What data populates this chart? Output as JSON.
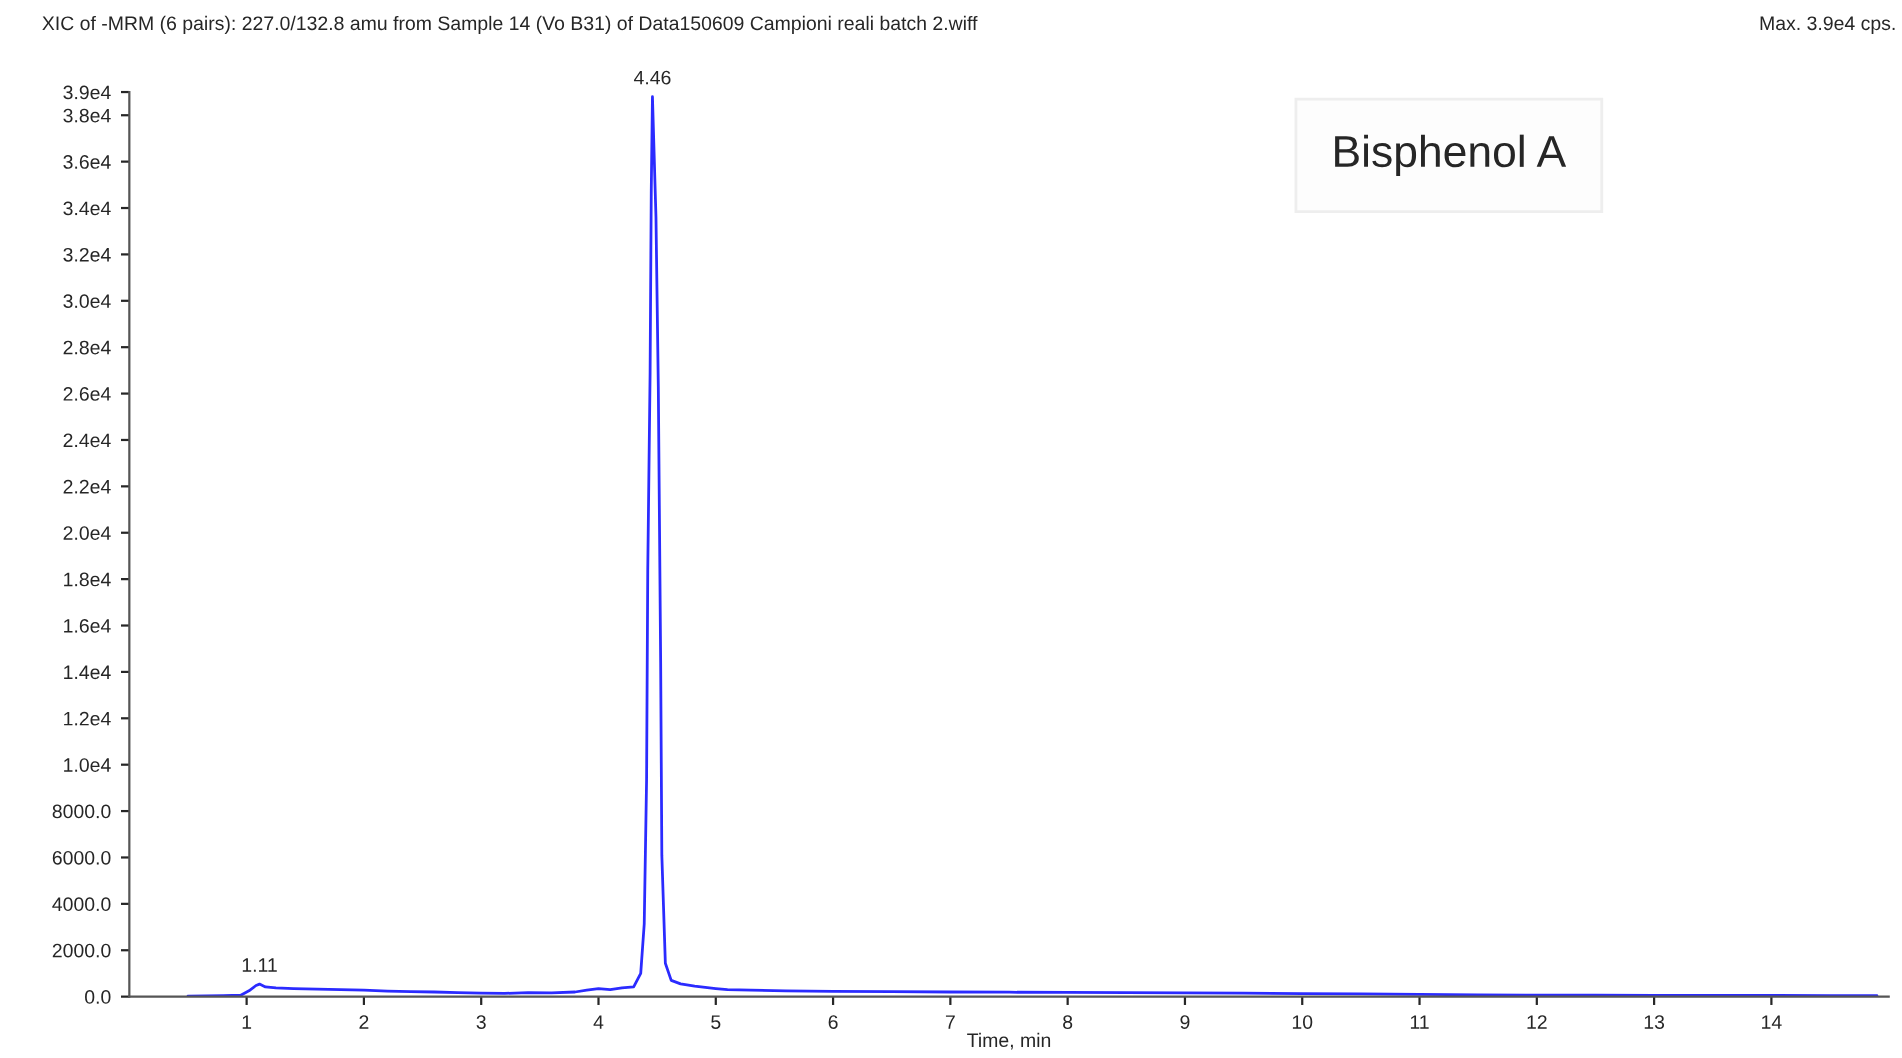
{
  "chart_data": {
    "type": "line",
    "title": "XIC of -MRM (6 pairs): 227.0/132.8 amu from Sample 14 (Vo B31) of Data150609 Campioni reali batch 2.wiff",
    "xlabel": "Time, min",
    "annotations": [
      "Max. 3.9e4 cps.",
      "Bisphenol A",
      {
        "text": "4.46",
        "x": 4.46,
        "y": 38800
      },
      {
        "text": "1.11",
        "x": 1.11,
        "y": 540
      }
    ],
    "series": [
      {
        "color": "#2b2bff",
        "x": [
          0.5,
          0.8,
          0.95,
          1.02,
          1.08,
          1.11,
          1.16,
          1.25,
          1.4,
          1.6,
          1.8,
          2.0,
          2.2,
          2.4,
          2.6,
          2.8,
          3.0,
          3.2,
          3.4,
          3.6,
          3.8,
          3.9,
          4.0,
          4.1,
          4.2,
          4.3,
          4.36,
          4.39,
          4.41,
          4.42,
          4.44,
          4.45,
          4.46,
          4.49,
          4.51,
          4.53,
          4.54,
          4.57,
          4.62,
          4.7,
          4.82,
          5.0,
          5.1,
          5.3,
          5.6,
          6.0,
          6.5,
          7.0,
          7.5,
          8.0,
          8.5,
          9.0,
          9.5,
          10.0,
          10.5,
          11.0,
          11.5,
          12.0,
          12.5,
          13.0,
          13.5,
          14.0,
          14.5,
          14.9
        ],
        "values": [
          20,
          40,
          60,
          250,
          480,
          540,
          420,
          380,
          350,
          320,
          300,
          280,
          240,
          220,
          200,
          170,
          150,
          140,
          170,
          160,
          200,
          280,
          350,
          300,
          380,
          420,
          1000,
          3140,
          9350,
          18400,
          26900,
          34800,
          38800,
          33600,
          26300,
          14400,
          6100,
          1440,
          700,
          550,
          450,
          350,
          300,
          280,
          250,
          230,
          220,
          200,
          190,
          180,
          170,
          160,
          150,
          130,
          120,
          100,
          80,
          60,
          60,
          50,
          50,
          50,
          40,
          40
        ]
      }
    ],
    "xlim": [
      0,
      15
    ],
    "xticks": [
      1,
      2,
      3,
      4,
      5,
      6,
      7,
      8,
      9,
      10,
      11,
      12,
      13,
      14
    ],
    "ylim": [
      0,
      39000
    ],
    "yticks": [
      {
        "value": 0,
        "label": "0.0"
      },
      {
        "value": 2000,
        "label": "2000.0"
      },
      {
        "value": 4000,
        "label": "4000.0"
      },
      {
        "value": 6000,
        "label": "6000.0"
      },
      {
        "value": 8000,
        "label": "8000.0"
      },
      {
        "value": 10000,
        "label": "1.0e4"
      },
      {
        "value": 12000,
        "label": "1.2e4"
      },
      {
        "value": 14000,
        "label": "1.4e4"
      },
      {
        "value": 16000,
        "label": "1.6e4"
      },
      {
        "value": 18000,
        "label": "1.8e4"
      },
      {
        "value": 20000,
        "label": "2.0e4"
      },
      {
        "value": 22000,
        "label": "2.2e4"
      },
      {
        "value": 24000,
        "label": "2.4e4"
      },
      {
        "value": 26000,
        "label": "2.6e4"
      },
      {
        "value": 28000,
        "label": "2.8e4"
      },
      {
        "value": 30000,
        "label": "3.0e4"
      },
      {
        "value": 32000,
        "label": "3.2e4"
      },
      {
        "value": 34000,
        "label": "3.4e4"
      },
      {
        "value": 36000,
        "label": "3.6e4"
      },
      {
        "value": 38000,
        "label": "3.8e4"
      },
      {
        "value": 39000,
        "label": "3.9e4"
      }
    ]
  }
}
